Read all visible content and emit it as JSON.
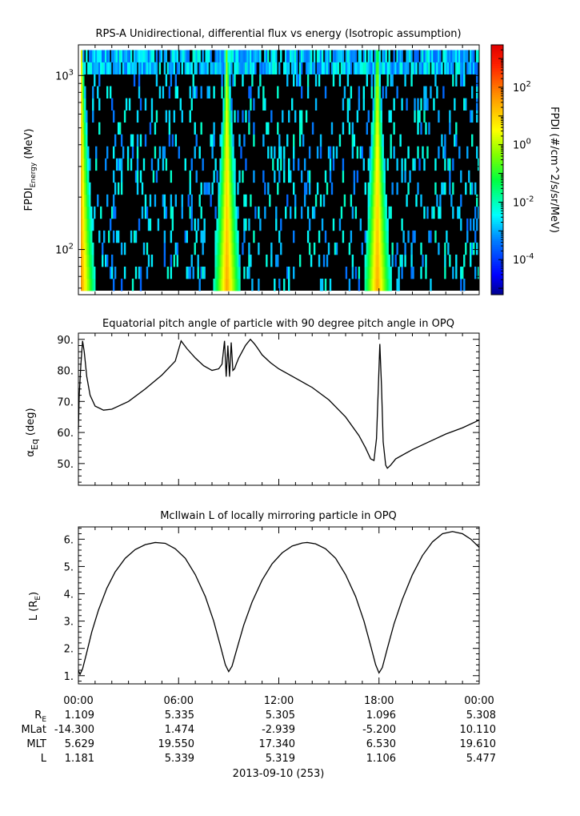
{
  "chart_data": [
    {
      "type": "heatmap",
      "title": "RPS-A Unidirectional, differential flux vs energy (Isotropic assumption)",
      "ylabel_main": "FPDI",
      "ylabel_sub": "Energy",
      "ylabel_unit": "(MeV)",
      "yscale": "log",
      "ylim": [
        55,
        1500
      ],
      "yticks": [
        {
          "value": 100,
          "base": "10",
          "exp": "2"
        },
        {
          "value": 1000,
          "base": "10",
          "exp": "3"
        }
      ],
      "xlim": [
        0,
        24
      ],
      "colorbar": {
        "label": "FPDI (#/cm^2/s/sr/MeV)",
        "scale": "log",
        "range": [
          6e-06,
          3000
        ],
        "ticks": [
          {
            "value": 0.0001,
            "base": "10",
            "exp": "-4"
          },
          {
            "value": 0.01,
            "base": "10",
            "exp": "-2"
          },
          {
            "value": 1,
            "base": "10",
            "exp": "0"
          },
          {
            "value": 100,
            "base": "10",
            "exp": "2"
          }
        ],
        "colormap": "rainbow"
      },
      "high_flux_passes": [
        {
          "center_hour": 0.2,
          "energy_reach_mev": 1400
        },
        {
          "center_hour": 8.9,
          "energy_reach_mev": 1400
        },
        {
          "center_hour": 17.9,
          "energy_reach_mev": 1400
        }
      ],
      "background": "sparse low-flux noise with black (no data) gaps"
    },
    {
      "type": "line",
      "title": "Equatorial pitch angle of particle with 90 degree pitch angle in OPQ",
      "ylabel": "α",
      "ylabel_sub": "Eq",
      "ylabel_unit": "(deg)",
      "xlim": [
        0,
        24
      ],
      "ylim": [
        43,
        92
      ],
      "yticks": [
        "90.",
        "80.",
        "70.",
        "60.",
        "50."
      ],
      "ytick_values": [
        90,
        80,
        70,
        60,
        50
      ],
      "series": [
        {
          "x": [
            0,
            0.05,
            0.15,
            0.25,
            0.35,
            0.5,
            0.7,
            1.0,
            1.5,
            2.0,
            3.0,
            4.0,
            5.0,
            5.8,
            6.15,
            6.5,
            7.0,
            7.5,
            8.0,
            8.4,
            8.6,
            8.75,
            8.85,
            8.95,
            9.05,
            9.15,
            9.25,
            9.35,
            9.45,
            9.6,
            9.8,
            10.0,
            10.3,
            10.55,
            10.75,
            11.0,
            11.5,
            12.0,
            13.0,
            14.0,
            15.0,
            16.0,
            16.8,
            17.2,
            17.5,
            17.7,
            17.85,
            17.95,
            18.05,
            18.15,
            18.25,
            18.4,
            18.5,
            18.7,
            19.0,
            20.0,
            21.0,
            22.0,
            23.0,
            24.0
          ],
          "y": [
            61,
            72,
            82,
            89.5,
            86,
            78,
            72,
            68.5,
            67.2,
            67.5,
            70,
            74,
            78.5,
            83,
            89.5,
            87,
            84,
            81.5,
            80,
            80.5,
            82,
            89.5,
            78,
            88,
            78,
            89,
            80,
            80.5,
            82,
            84,
            86,
            88,
            90,
            88.5,
            87,
            85,
            82.5,
            80.5,
            77.5,
            74.5,
            70.5,
            65,
            59,
            55,
            51.5,
            51,
            58,
            73,
            88.5,
            75,
            57,
            49.5,
            48.5,
            49.5,
            51.5,
            54.5,
            57,
            59.5,
            61.5,
            64
          ]
        }
      ]
    },
    {
      "type": "line",
      "title": "McIlwain L of locally mirroring particle in OPQ",
      "ylabel": "L (R",
      "ylabel_sub": "E",
      "ylabel_unit": ")",
      "xlim": [
        0,
        24
      ],
      "ylim": [
        0.7,
        6.45
      ],
      "yticks": [
        "1.",
        "2.",
        "3.",
        "4.",
        "5.",
        "6."
      ],
      "ytick_values": [
        1,
        2,
        3,
        4,
        5,
        6
      ],
      "series": [
        {
          "x": [
            0,
            0.1,
            0.25,
            0.5,
            0.8,
            1.2,
            1.7,
            2.2,
            2.8,
            3.4,
            4.0,
            4.6,
            5.2,
            5.8,
            6.4,
            7.0,
            7.6,
            8.1,
            8.5,
            8.8,
            9.0,
            9.2,
            9.5,
            9.9,
            10.4,
            11.0,
            11.6,
            12.2,
            12.8,
            13.4,
            13.7,
            14.2,
            14.8,
            15.4,
            16.0,
            16.6,
            17.1,
            17.5,
            17.8,
            18.0,
            18.2,
            18.5,
            18.9,
            19.4,
            20.0,
            20.6,
            21.2,
            21.8,
            22.4,
            23.0,
            23.5,
            24.0
          ],
          "y": [
            1.18,
            1.05,
            1.25,
            1.85,
            2.6,
            3.4,
            4.2,
            4.8,
            5.3,
            5.62,
            5.8,
            5.88,
            5.85,
            5.65,
            5.3,
            4.7,
            3.9,
            3.0,
            2.1,
            1.4,
            1.15,
            1.35,
            2.0,
            2.85,
            3.7,
            4.5,
            5.1,
            5.5,
            5.75,
            5.86,
            5.88,
            5.83,
            5.65,
            5.3,
            4.7,
            3.9,
            3.0,
            2.1,
            1.4,
            1.1,
            1.3,
            2.0,
            2.9,
            3.8,
            4.7,
            5.4,
            5.9,
            6.2,
            6.28,
            6.2,
            6.0,
            5.7
          ]
        }
      ]
    }
  ],
  "x_axis": {
    "tick_labels": [
      "00:00",
      "06:00",
      "12:00",
      "18:00",
      "00:00"
    ],
    "tick_hours": [
      0,
      6,
      12,
      18,
      24
    ],
    "date_label": "2013-09-10 (253)"
  },
  "ephemeris": {
    "row_labels": [
      {
        "main": "R",
        "sub": "E"
      },
      {
        "main": "MLat",
        "sub": ""
      },
      {
        "main": "MLT",
        "sub": ""
      },
      {
        "main": "L",
        "sub": ""
      }
    ],
    "values": [
      [
        "1.109",
        "5.335",
        "5.305",
        "1.096",
        "5.308"
      ],
      [
        "-14.300",
        "1.474",
        "-2.939",
        "-5.200",
        "10.110"
      ],
      [
        "5.629",
        "19.550",
        "17.340",
        "6.530",
        "19.610"
      ],
      [
        "1.181",
        "5.339",
        "5.319",
        "1.106",
        "5.477"
      ]
    ]
  },
  "colors": {
    "line": "#000000",
    "axes": "#000000",
    "no_data": "#000000"
  }
}
